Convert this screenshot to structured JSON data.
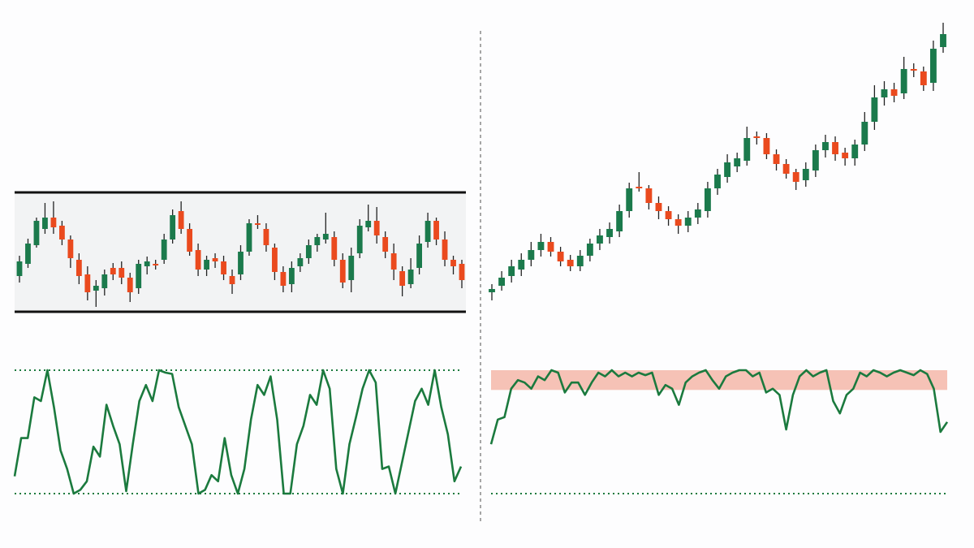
{
  "chart_data": [
    {
      "type": "candlestick",
      "up_color": "#1b7a4c",
      "down_color": "#ea4a1e",
      "ylim": [
        0,
        200
      ],
      "channel": [
        163,
        16
      ],
      "channel_fill": "#f2f3f4",
      "open": [
        60,
        75,
        98,
        118,
        132,
        122,
        105,
        80,
        62,
        42,
        45,
        70,
        70,
        58,
        45,
        72,
        75,
        80,
        105,
        140,
        118,
        92,
        68,
        82,
        78,
        60,
        62,
        90,
        125,
        118,
        95,
        65,
        50,
        72,
        82,
        98,
        105,
        108,
        80,
        55,
        88,
        120,
        128,
        108,
        88,
        66,
        50,
        70,
        102,
        128,
        105,
        80,
        75
      ],
      "high": [
        85,
        106,
        132,
        150,
        152,
        128,
        110,
        88,
        72,
        55,
        68,
        76,
        78,
        64,
        80,
        84,
        80,
        112,
        142,
        152,
        125,
        100,
        85,
        88,
        85,
        68,
        98,
        130,
        135,
        125,
        100,
        72,
        78,
        88,
        105,
        112,
        138,
        115,
        88,
        95,
        130,
        148,
        145,
        115,
        100,
        72,
        82,
        110,
        138,
        132,
        115,
        85,
        80
      ],
      "low": [
        52,
        70,
        95,
        112,
        112,
        98,
        70,
        50,
        30,
        22,
        36,
        55,
        50,
        28,
        38,
        62,
        68,
        75,
        100,
        112,
        85,
        60,
        60,
        70,
        55,
        38,
        55,
        85,
        118,
        90,
        55,
        40,
        40,
        65,
        75,
        90,
        100,
        72,
        45,
        40,
        82,
        115,
        100,
        82,
        55,
        35,
        45,
        62,
        95,
        98,
        72,
        62,
        45
      ],
      "close": [
        78,
        100,
        128,
        132,
        120,
        105,
        82,
        60,
        40,
        48,
        62,
        62,
        58,
        40,
        75,
        78,
        73,
        105,
        135,
        118,
        90,
        68,
        80,
        78,
        62,
        50,
        90,
        125,
        124,
        98,
        65,
        48,
        70,
        82,
        98,
        108,
        112,
        80,
        52,
        85,
        122,
        128,
        110,
        90,
        68,
        48,
        68,
        100,
        128,
        105,
        80,
        72,
        55
      ]
    },
    {
      "type": "line",
      "color": "#1b7a3e",
      "ylim": [
        0,
        100
      ],
      "levels": [
        100,
        0
      ],
      "values": [
        14,
        45,
        45,
        78,
        75,
        100,
        70,
        35,
        20,
        0,
        3,
        10,
        38,
        30,
        72,
        55,
        40,
        2,
        40,
        75,
        88,
        75,
        100,
        98,
        97,
        70,
        55,
        40,
        0,
        3,
        15,
        10,
        45,
        15,
        0,
        20,
        60,
        88,
        80,
        95,
        60,
        0,
        0,
        40,
        55,
        80,
        72,
        100,
        85,
        20,
        0,
        40,
        62,
        85,
        100,
        90,
        20,
        22,
        0,
        25,
        50,
        75,
        85,
        72,
        100,
        70,
        48,
        10,
        22
      ]
    },
    {
      "type": "candlestick",
      "up_color": "#1b7a4c",
      "down_color": "#ea4a1e",
      "ylim": [
        0,
        400
      ],
      "open": [
        40,
        48,
        60,
        68,
        80,
        92,
        102,
        90,
        80,
        72,
        85,
        100,
        108,
        115,
        140,
        170,
        168,
        150,
        140,
        130,
        122,
        132,
        140,
        168,
        182,
        195,
        202,
        232,
        230,
        210,
        198,
        188,
        178,
        190,
        215,
        225,
        212,
        205,
        222,
        250,
        280,
        290,
        285,
        315,
        312,
        298,
        342
      ],
      "high": [
        50,
        66,
        80,
        88,
        102,
        112,
        108,
        96,
        86,
        92,
        106,
        118,
        126,
        148,
        175,
        188,
        172,
        158,
        146,
        136,
        140,
        150,
        176,
        192,
        210,
        212,
        244,
        238,
        236,
        216,
        204,
        192,
        200,
        222,
        234,
        232,
        218,
        228,
        262,
        295,
        300,
        298,
        330,
        322,
        318,
        350,
        372
      ],
      "low": [
        30,
        42,
        52,
        60,
        72,
        84,
        84,
        72,
        66,
        66,
        78,
        92,
        100,
        108,
        132,
        164,
        142,
        130,
        122,
        112,
        114,
        124,
        132,
        160,
        175,
        188,
        196,
        222,
        204,
        190,
        180,
        166,
        170,
        182,
        206,
        202,
        196,
        196,
        214,
        240,
        270,
        274,
        278,
        305,
        288,
        288,
        335
      ],
      "close": [
        44,
        58,
        72,
        80,
        92,
        102,
        90,
        78,
        72,
        85,
        100,
        110,
        118,
        140,
        168,
        168,
        150,
        140,
        130,
        122,
        132,
        142,
        168,
        185,
        200,
        205,
        230,
        230,
        210,
        198,
        186,
        176,
        192,
        215,
        225,
        210,
        205,
        222,
        250,
        280,
        290,
        282,
        315,
        313,
        295,
        340,
        358
      ]
    },
    {
      "type": "line",
      "color": "#1b7a3e",
      "ylim": [
        0,
        100
      ],
      "levels": [
        0
      ],
      "band": [
        84,
        100
      ],
      "band_color": "#f6c2b6",
      "values": [
        40,
        60,
        62,
        85,
        92,
        90,
        85,
        95,
        92,
        100,
        98,
        82,
        90,
        90,
        80,
        90,
        98,
        95,
        100,
        95,
        98,
        95,
        98,
        96,
        98,
        80,
        88,
        85,
        72,
        90,
        95,
        98,
        100,
        92,
        85,
        95,
        98,
        100,
        100,
        95,
        98,
        82,
        85,
        80,
        52,
        80,
        95,
        100,
        95,
        98,
        100,
        75,
        65,
        80,
        85,
        98,
        95,
        100,
        98,
        95,
        98,
        100,
        98,
        96,
        100,
        97,
        85,
        50,
        58
      ]
    }
  ]
}
